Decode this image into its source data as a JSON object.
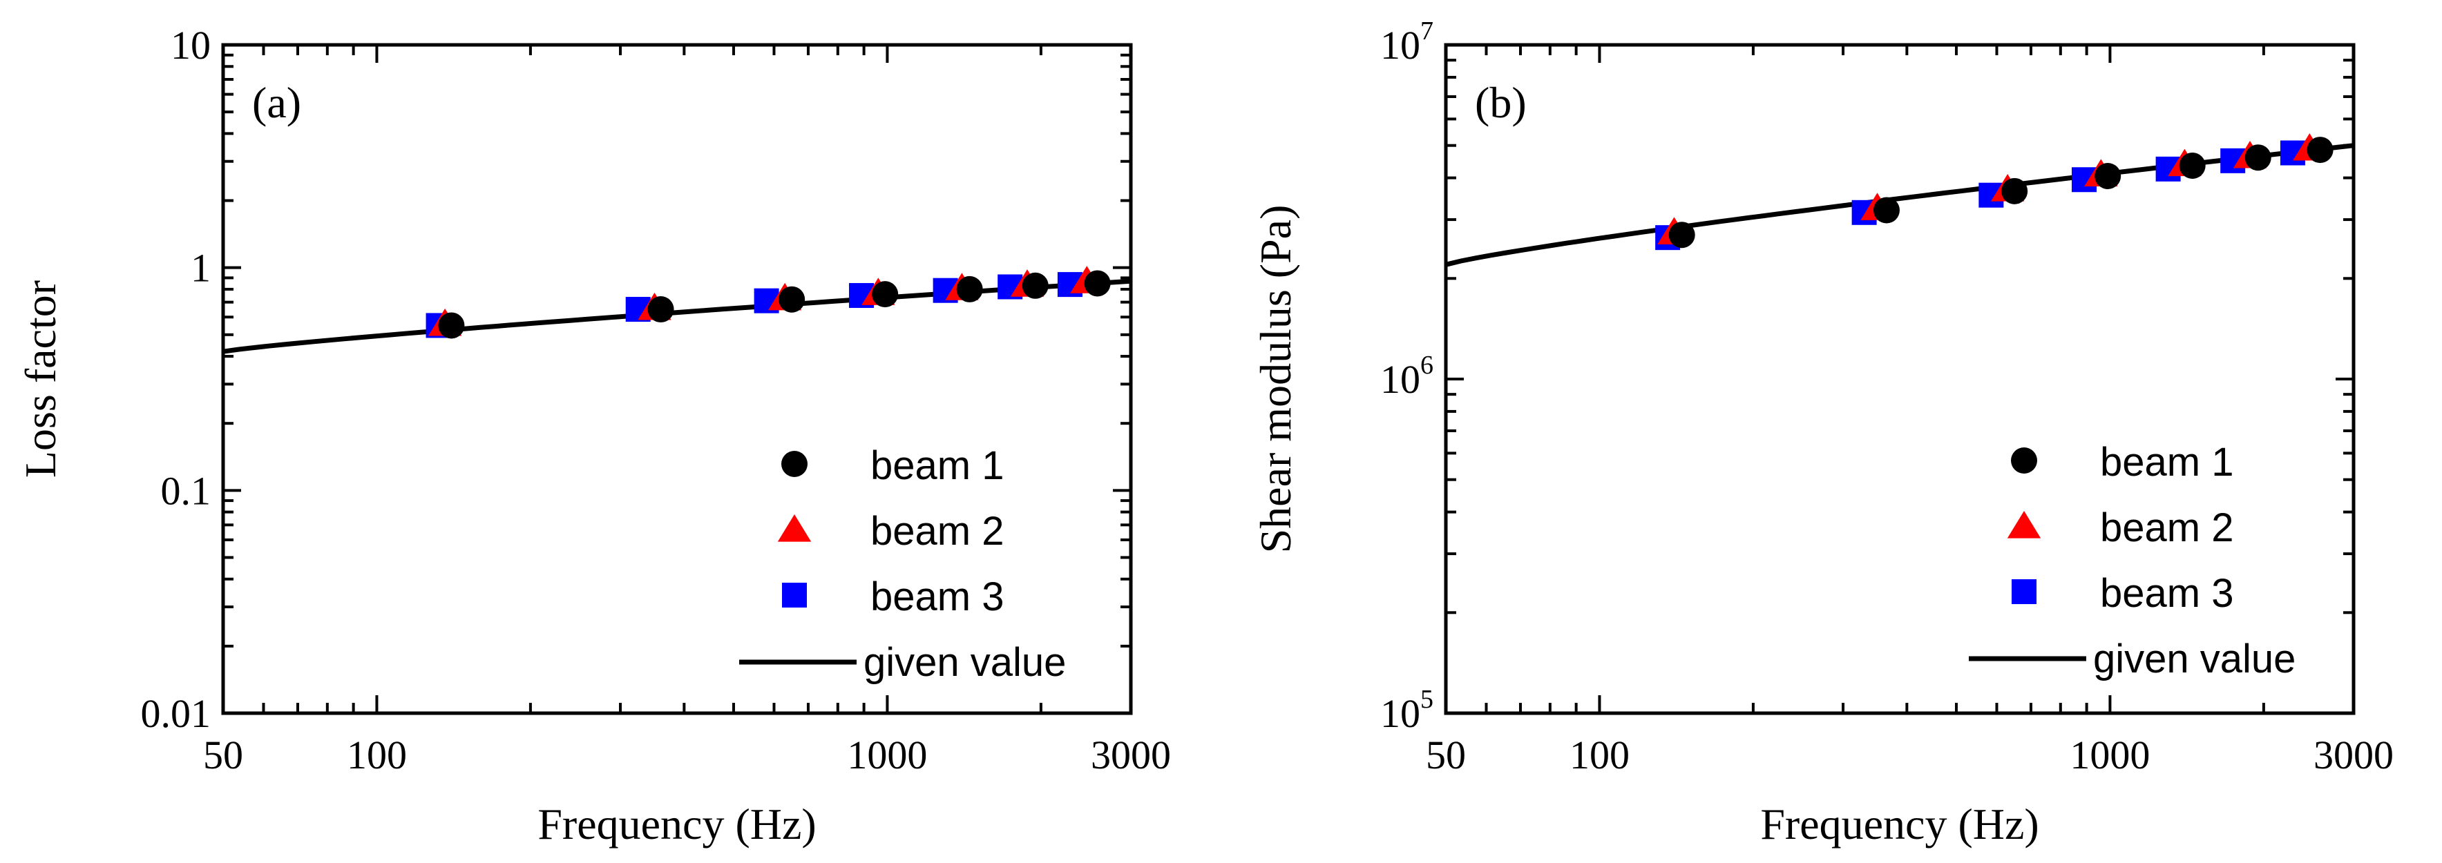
{
  "chart_data": [
    {
      "type": "scatter",
      "panel_label": "(a)",
      "xlabel": "Frequency (Hz)",
      "ylabel": "Loss factor",
      "xscale": "log",
      "yscale": "log",
      "xlim": [
        50,
        3000
      ],
      "ylim": [
        0.01,
        10
      ],
      "x_ticks": [
        {
          "value": 50,
          "label": "50"
        },
        {
          "value": 100,
          "label": "100"
        },
        {
          "value": 1000,
          "label": "1000"
        },
        {
          "value": 3000,
          "label": "3000"
        }
      ],
      "y_ticks": [
        {
          "value": 0.01,
          "label": "0.01"
        },
        {
          "value": 0.1,
          "label": "0.1"
        },
        {
          "value": 1,
          "label": "1"
        },
        {
          "value": 10,
          "label": "10"
        }
      ],
      "legend_position": "bottom-right",
      "series": [
        {
          "name": "beam 1",
          "marker": "circle",
          "color": "#000000",
          "x": [
            140,
            360,
            650,
            990,
            1450,
            1950,
            2580
          ],
          "y": [
            0.55,
            0.65,
            0.72,
            0.76,
            0.8,
            0.83,
            0.85
          ]
        },
        {
          "name": "beam 2",
          "marker": "triangle",
          "color": "#ff0000",
          "x": [
            136,
            350,
            630,
            960,
            1400,
            1880,
            2460
          ],
          "y": [
            0.56,
            0.66,
            0.73,
            0.77,
            0.81,
            0.84,
            0.87
          ]
        },
        {
          "name": "beam 3",
          "marker": "square",
          "color": "#0000ff",
          "x": [
            132,
            325,
            580,
            890,
            1300,
            1740,
            2280
          ],
          "y": [
            0.55,
            0.65,
            0.71,
            0.75,
            0.79,
            0.82,
            0.84
          ]
        },
        {
          "name": "given value",
          "marker": "line",
          "color": "#000000",
          "x": [
            50,
            3000
          ],
          "y": [
            0.42,
            0.87
          ]
        }
      ]
    },
    {
      "type": "scatter",
      "panel_label": "(b)",
      "xlabel": "Frequency (Hz)",
      "ylabel": "Shear modulus (Pa)",
      "xscale": "log",
      "yscale": "log",
      "xlim": [
        50,
        3000
      ],
      "ylim": [
        100000,
        10000000
      ],
      "x_ticks": [
        {
          "value": 50,
          "label": "50"
        },
        {
          "value": 100,
          "label": "100"
        },
        {
          "value": 1000,
          "label": "1000"
        },
        {
          "value": 3000,
          "label": "3000"
        }
      ],
      "y_ticks": [
        {
          "value": 100000,
          "base": "10",
          "exp": "5"
        },
        {
          "value": 1000000,
          "base": "10",
          "exp": "6"
        },
        {
          "value": 10000000,
          "base": "10",
          "exp": "7"
        }
      ],
      "legend_position": "bottom-right",
      "series": [
        {
          "name": "beam 1",
          "marker": "circle",
          "color": "#000000",
          "x": [
            145,
            365,
            650,
            990,
            1450,
            1950,
            2580
          ],
          "y": [
            2700000,
            3200000,
            3650000,
            4050000,
            4350000,
            4600000,
            4850000
          ]
        },
        {
          "name": "beam 2",
          "marker": "triangle",
          "color": "#ff0000",
          "x": [
            140,
            350,
            630,
            960,
            1400,
            1880,
            2460
          ],
          "y": [
            2750000,
            3250000,
            3700000,
            4100000,
            4400000,
            4650000,
            4900000
          ]
        },
        {
          "name": "beam 3",
          "marker": "square",
          "color": "#0000ff",
          "x": [
            136,
            330,
            585,
            890,
            1300,
            1740,
            2280
          ],
          "y": [
            2650000,
            3150000,
            3550000,
            3950000,
            4250000,
            4500000,
            4750000
          ]
        },
        {
          "name": "given value",
          "marker": "line",
          "color": "#000000",
          "x": [
            50,
            3000
          ],
          "y": [
            2200000,
            5000000
          ]
        }
      ]
    }
  ]
}
